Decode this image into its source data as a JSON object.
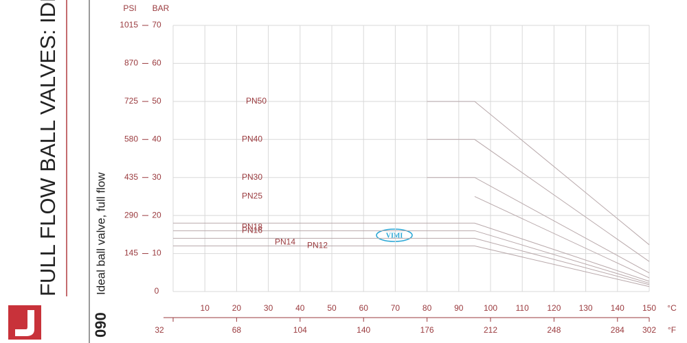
{
  "side_title": "FULL FLOW BALL VALVES: IDEAL",
  "subtitle": "Ideal ball valve, full flow",
  "code": "090",
  "watermark": "VIMI",
  "chart_data": {
    "type": "line",
    "y_label": "BAR",
    "y2_label": "PSI",
    "x_unit": "°C",
    "x2_unit": "°F",
    "xlim": [
      0,
      150
    ],
    "xticks": [
      10,
      20,
      30,
      40,
      50,
      60,
      70,
      80,
      90,
      100,
      110,
      120,
      130,
      140,
      150
    ],
    "x2lim": [
      32,
      302
    ],
    "x2ticks": [
      32,
      68,
      104,
      140,
      176,
      212,
      248,
      284,
      302
    ],
    "ylim": [
      0,
      70
    ],
    "yticks": [
      0,
      10,
      20,
      30,
      40,
      50,
      60,
      70
    ],
    "y2lim": [
      0,
      1015
    ],
    "y2ticks": [
      145,
      290,
      435,
      580,
      725,
      870,
      1015
    ],
    "grid": true,
    "color": "#b8a8aa",
    "series": [
      {
        "name": "PN50",
        "x": [
          80,
          95,
          150
        ],
        "values": [
          50,
          50,
          12.3
        ]
      },
      {
        "name": "PN40",
        "x": [
          80,
          95,
          150
        ],
        "values": [
          40,
          40,
          7.9
        ]
      },
      {
        "name": "PN30",
        "x": [
          80,
          95,
          150
        ],
        "values": [
          30,
          30,
          4.9
        ]
      },
      {
        "name": "PN25",
        "x": [
          95,
          150
        ],
        "values": [
          25,
          3.6
        ]
      },
      {
        "name": "PN18",
        "x": [
          0,
          95,
          150
        ],
        "values": [
          18,
          18,
          2.7
        ]
      },
      {
        "name": "PN16",
        "x": [
          0,
          95,
          150
        ],
        "values": [
          16,
          16,
          2.2
        ]
      },
      {
        "name": "PN14",
        "x": [
          0,
          95,
          150
        ],
        "values": [
          14,
          14,
          1.8
        ]
      },
      {
        "name": "PN12",
        "x": [
          0,
          95,
          150
        ],
        "values": [
          12,
          12,
          1.3
        ]
      }
    ]
  }
}
